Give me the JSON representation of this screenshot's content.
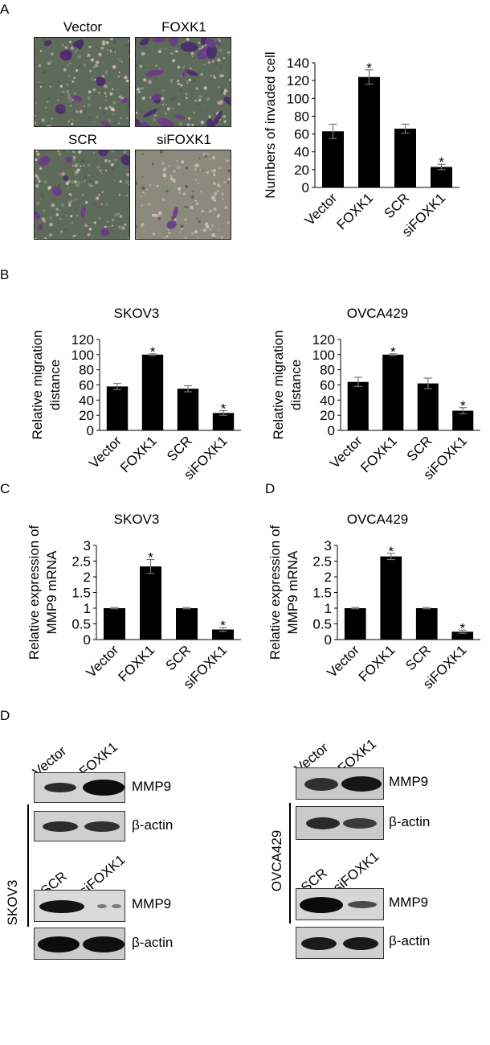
{
  "panels": {
    "A": "A",
    "B": "B",
    "C": "C",
    "D1": "D",
    "D2": "D"
  },
  "micrographs": [
    {
      "label": "Vector",
      "density": "medium"
    },
    {
      "label": "FOXK1",
      "density": "high"
    },
    {
      "label": "SCR",
      "density": "medium"
    },
    {
      "label": "siFOXK1",
      "density": "low"
    }
  ],
  "chart_data": [
    {
      "id": "invasion",
      "type": "bar",
      "title": "",
      "categories": [
        "Vector",
        "FOXK1",
        "SCR",
        "siFOXK1"
      ],
      "values": [
        63,
        124,
        66,
        23
      ],
      "errors": [
        8,
        8,
        5,
        3
      ],
      "significant": [
        false,
        true,
        false,
        true
      ],
      "ylabel": [
        "Numbers of invaded cell"
      ],
      "ylim": [
        0,
        140
      ],
      "yticks": [
        "0",
        "20",
        "40",
        "60",
        "80",
        "100",
        "120",
        "140"
      ]
    },
    {
      "id": "migration-skov3",
      "type": "bar",
      "title": "SKOV3",
      "categories": [
        "Vector",
        "FOXK1",
        "SCR",
        "siFOXK1"
      ],
      "values": [
        58,
        100,
        55,
        23
      ],
      "errors": [
        4,
        1,
        4,
        3
      ],
      "significant": [
        false,
        true,
        false,
        true
      ],
      "ylabel": [
        "Relative migration",
        "distance"
      ],
      "ylim": [
        0,
        120
      ],
      "yticks": [
        "0",
        "20",
        "40",
        "60",
        "80",
        "100",
        "120"
      ]
    },
    {
      "id": "migration-ovca429",
      "type": "bar",
      "title": "OVCA429",
      "categories": [
        "Vector",
        "FOXK1",
        "SCR",
        "siFOXK1"
      ],
      "values": [
        64,
        100,
        62,
        26
      ],
      "errors": [
        6,
        1,
        7,
        4
      ],
      "significant": [
        false,
        true,
        false,
        true
      ],
      "ylabel": [
        "Relative migration",
        "distance"
      ],
      "ylim": [
        0,
        120
      ],
      "yticks": [
        "0",
        "20",
        "40",
        "60",
        "80",
        "100",
        "120"
      ]
    },
    {
      "id": "mmp9-skov3",
      "type": "bar",
      "title": "SKOV3",
      "categories": [
        "Vector",
        "FOXK1",
        "SCR",
        "siFOXK1"
      ],
      "values": [
        1,
        2.33,
        1,
        0.32
      ],
      "errors": [
        0.02,
        0.22,
        0.02,
        0.06
      ],
      "significant": [
        false,
        true,
        false,
        true
      ],
      "ylabel": [
        "Relative expression of",
        "MMP9 mRNA"
      ],
      "ylim": [
        0,
        3
      ],
      "yticks": [
        "0",
        "0.5",
        "1",
        "1.5",
        "2",
        "2.5",
        "3"
      ]
    },
    {
      "id": "mmp9-ovca429",
      "type": "bar",
      "title": "OVCA429",
      "categories": [
        "Vector",
        "FOXK1",
        "SCR",
        "siFOXK1"
      ],
      "values": [
        1,
        2.65,
        1,
        0.25
      ],
      "errors": [
        0.02,
        0.1,
        0.02,
        0.05
      ],
      "significant": [
        false,
        true,
        false,
        true
      ],
      "ylabel": [
        "Relative expression of",
        "MMP9 mRNA"
      ],
      "ylim": [
        0,
        3
      ],
      "yticks": [
        "0",
        "0.5",
        "1",
        "1.5",
        "2",
        "2.5",
        "3"
      ]
    }
  ],
  "asterisk": "*",
  "western": {
    "left": {
      "cell_line": "SKOV3",
      "lanes_top": [
        "Vector",
        "FOXK1"
      ],
      "lanes_bottom": [
        "SCR",
        "siFOXK1"
      ],
      "rows": [
        "MMP9",
        "β-actin",
        "MMP9",
        "β-actin"
      ]
    },
    "right": {
      "cell_line": "OVCA429",
      "lanes_top": [
        "Vector",
        "FOXK1"
      ],
      "lanes_bottom": [
        "SCR",
        "siFOXK1"
      ],
      "rows": [
        "MMP9",
        "β-actin",
        "MMP9",
        "β-actin"
      ]
    }
  }
}
